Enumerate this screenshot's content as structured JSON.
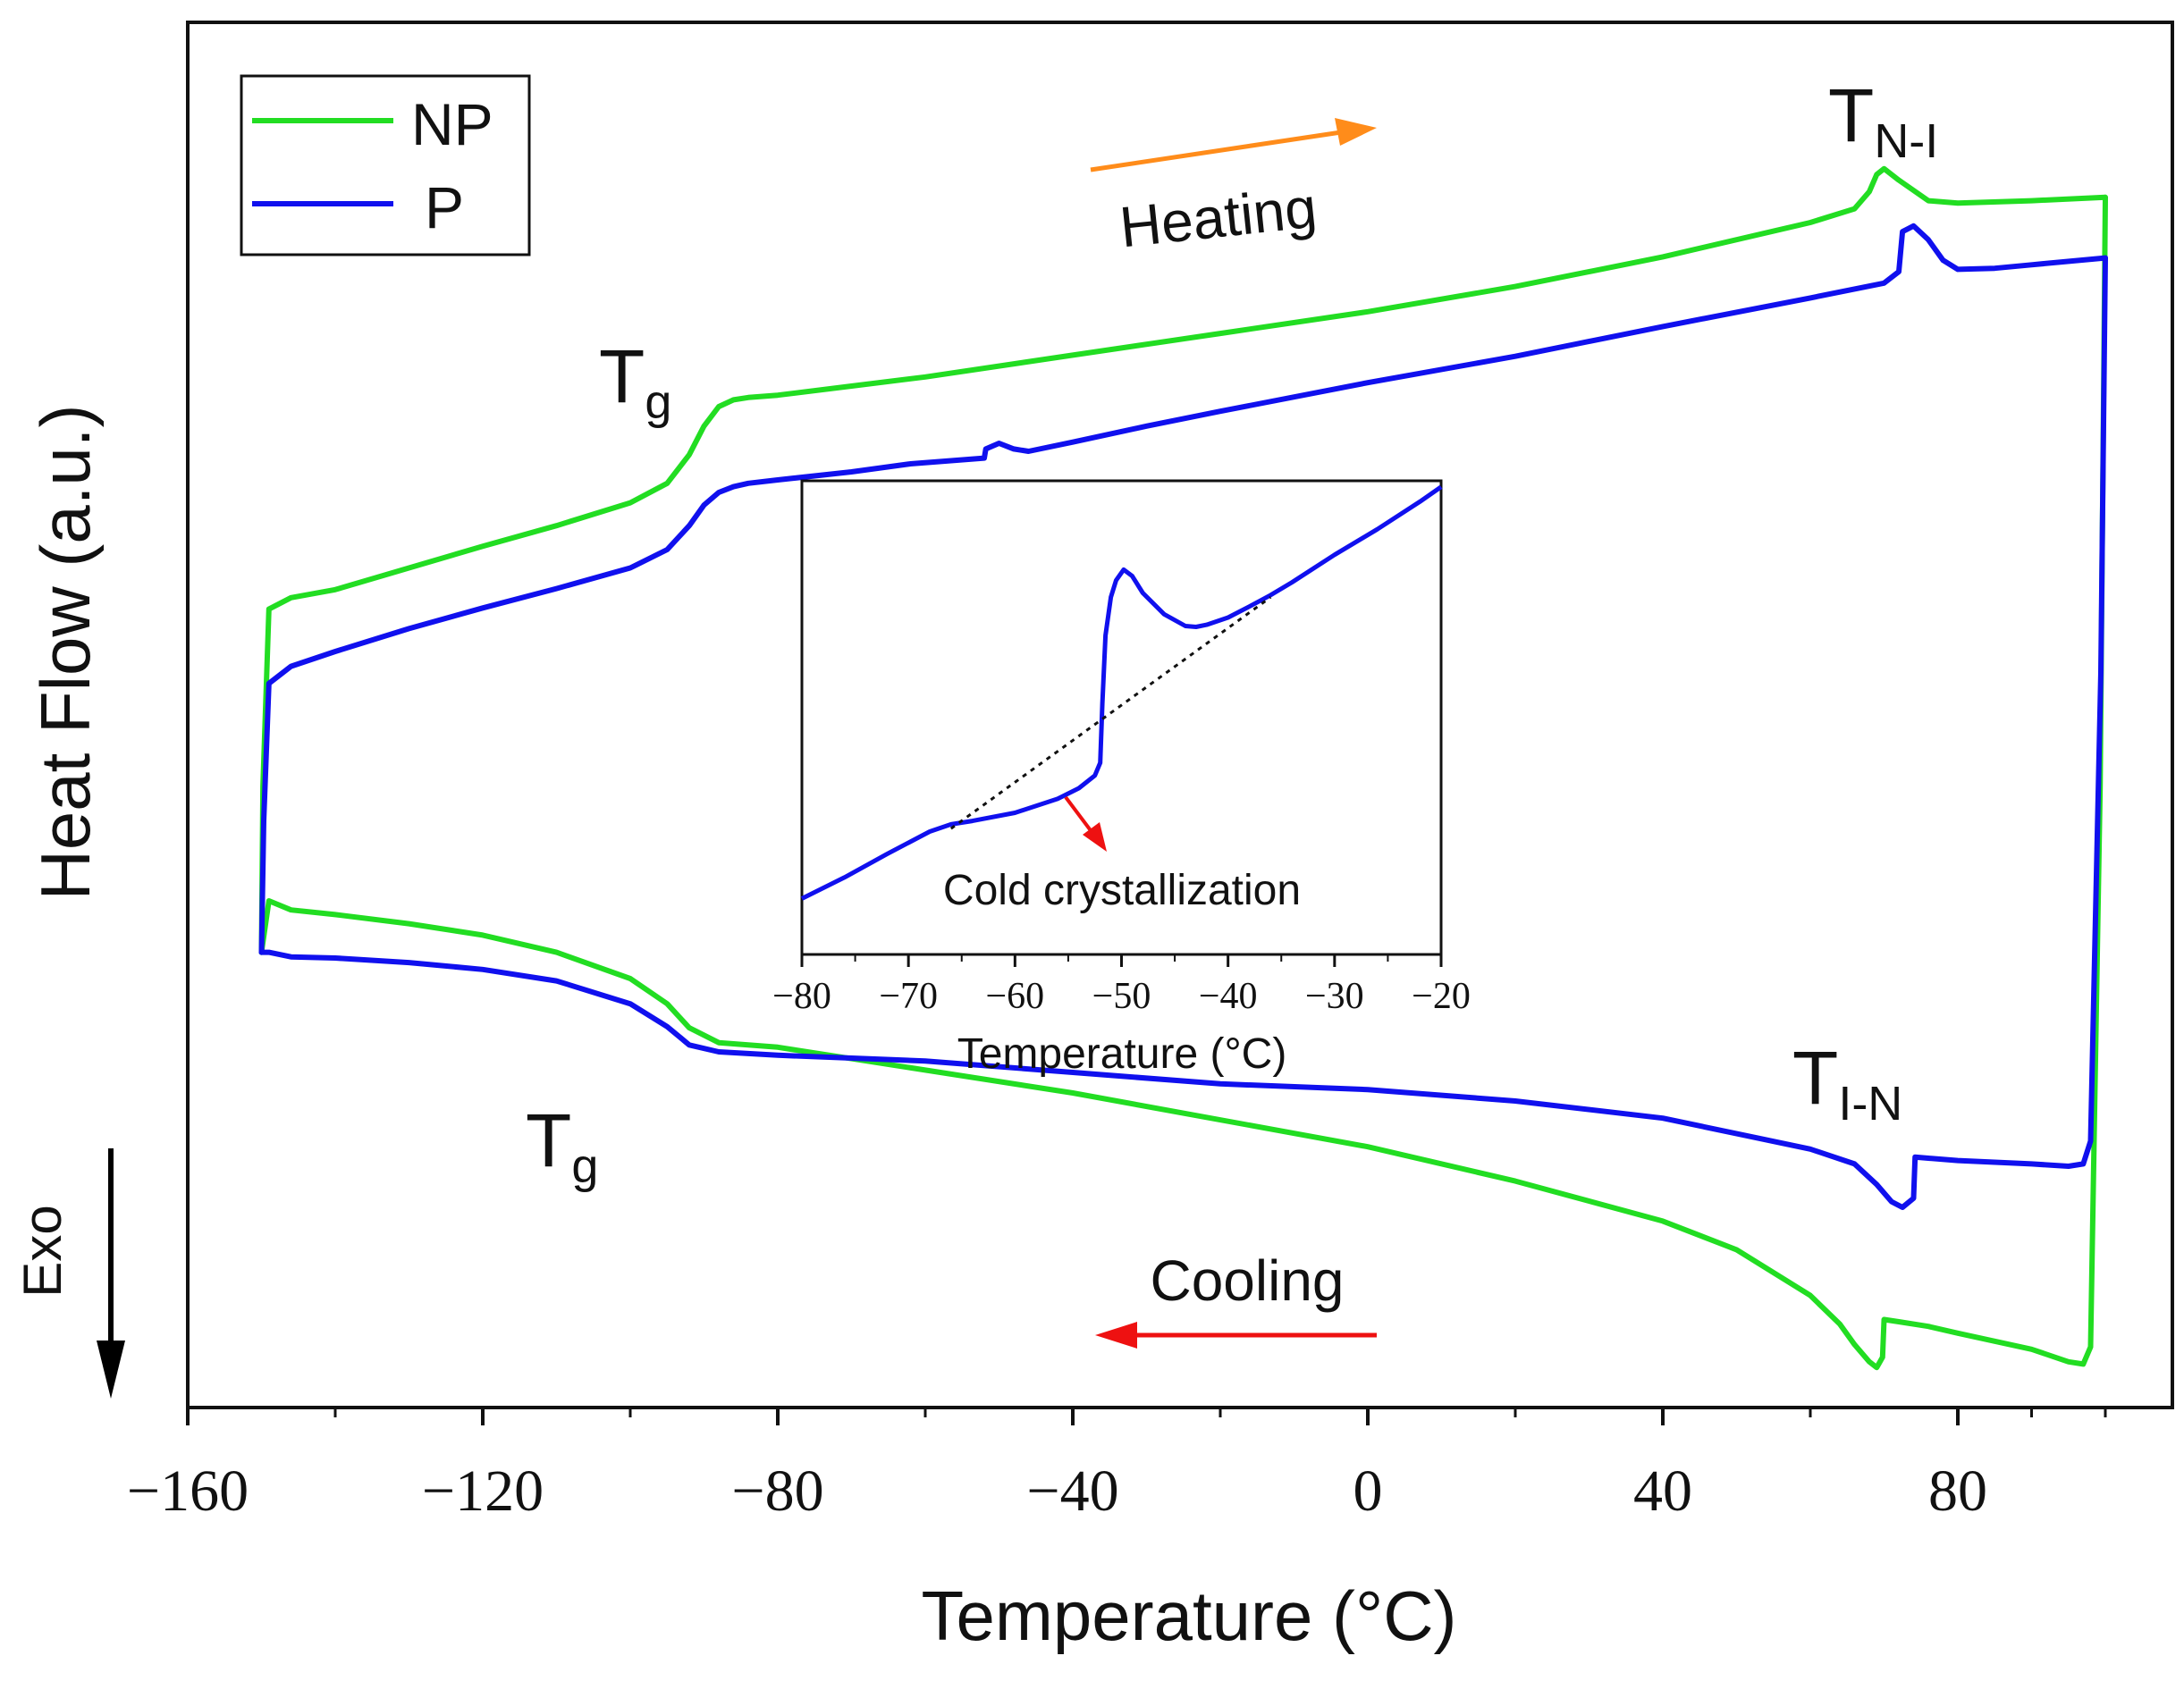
{
  "chart_data": [
    {
      "type": "line",
      "title": "",
      "xlabel": "Temperature (°C)",
      "ylabel": "Heat Flow (a.u.)",
      "xlim": [
        -160,
        110
      ],
      "ylim": [
        0,
        1
      ],
      "xticks": [
        -160,
        -120,
        -80,
        -40,
        0,
        40,
        80
      ],
      "xtick_labels": [
        "−160",
        "−120",
        "−80",
        "−40",
        "0",
        "40",
        "80"
      ],
      "yticks_shown": false,
      "legend": {
        "position": "top-left",
        "entries": [
          "NP",
          "P"
        ]
      },
      "colors": {
        "NP": "#22dd22",
        "P": "#1010ee",
        "heating_arrow": "#ff8c1a",
        "cooling_arrow": "#ee1111",
        "exo_arrow": "#000000"
      },
      "series": [
        {
          "name": "NP",
          "segment": "heating",
          "x": [
            -150,
            -149.8,
            -149,
            -146,
            -140,
            -130,
            -120,
            -110,
            -100,
            -95,
            -92,
            -90,
            -88,
            -86,
            -84,
            -80,
            -70,
            -60,
            -40,
            -20,
            0,
            20,
            40,
            60,
            66,
            68,
            69,
            70,
            72,
            76,
            80,
            90,
            100
          ],
          "y": [
            0.355,
            0.5,
            0.655,
            0.665,
            0.672,
            0.691,
            0.71,
            0.728,
            0.748,
            0.765,
            0.79,
            0.815,
            0.832,
            0.838,
            0.84,
            0.842,
            0.85,
            0.858,
            0.877,
            0.896,
            0.915,
            0.937,
            0.963,
            0.993,
            1.005,
            1.02,
            1.035,
            1.04,
            1.03,
            1.012,
            1.01,
            1.012,
            1.015
          ]
        },
        {
          "name": "NP",
          "segment": "cooling",
          "x": [
            100,
            99.3,
            98,
            97,
            95,
            90,
            80,
            76,
            72,
            70,
            69.8,
            69,
            68,
            66,
            64,
            60,
            50,
            40,
            20,
            0,
            -40,
            -60,
            -80,
            -88,
            -92,
            -95,
            -100,
            -110,
            -120,
            -130,
            -140,
            -146,
            -149,
            -150
          ],
          "y": [
            1.015,
            0.5,
            0.01,
            -0.005,
            -0.003,
            0.008,
            0.022,
            0.028,
            0.032,
            0.034,
            0.001,
            -0.008,
            -0.003,
            0.012,
            0.03,
            0.055,
            0.095,
            0.12,
            0.155,
            0.185,
            0.232,
            0.252,
            0.272,
            0.276,
            0.289,
            0.31,
            0.332,
            0.355,
            0.37,
            0.38,
            0.388,
            0.392,
            0.4,
            0.355
          ]
        },
        {
          "name": "P",
          "segment": "heating",
          "x": [
            -150,
            -149.7,
            -149,
            -146,
            -140,
            -130,
            -120,
            -110,
            -100,
            -95,
            -92,
            -90,
            -88,
            -86,
            -84,
            -80,
            -70,
            -62,
            -52,
            -51.8,
            -50,
            -48,
            -46,
            -40,
            -30,
            -20,
            0,
            20,
            40,
            60,
            70,
            72,
            72.5,
            74,
            76,
            78,
            80,
            85,
            90,
            100
          ],
          "y": [
            0.355,
            0.47,
            0.59,
            0.605,
            0.618,
            0.638,
            0.656,
            0.673,
            0.691,
            0.707,
            0.728,
            0.746,
            0.757,
            0.762,
            0.765,
            0.768,
            0.775,
            0.782,
            0.787,
            0.795,
            0.8,
            0.795,
            0.793,
            0.801,
            0.815,
            0.828,
            0.853,
            0.876,
            0.902,
            0.927,
            0.94,
            0.95,
            0.985,
            0.99,
            0.978,
            0.96,
            0.952,
            0.953,
            0.956,
            0.962
          ]
        },
        {
          "name": "P",
          "segment": "cooling",
          "x": [
            100,
            99.4,
            98,
            97,
            95,
            90,
            80,
            76,
            74.2,
            74,
            72.5,
            71,
            69,
            66,
            60,
            40,
            20,
            0,
            -20,
            -40,
            -60,
            -80,
            -88,
            -92,
            -95,
            -100,
            -110,
            -120,
            -130,
            -140,
            -146,
            -149,
            -150
          ],
          "y": [
            0.962,
            0.6,
            0.19,
            0.17,
            0.168,
            0.17,
            0.173,
            0.175,
            0.176,
            0.14,
            0.132,
            0.137,
            0.152,
            0.17,
            0.183,
            0.21,
            0.225,
            0.235,
            0.24,
            0.25,
            0.26,
            0.265,
            0.268,
            0.274,
            0.29,
            0.31,
            0.33,
            0.34,
            0.346,
            0.35,
            0.351,
            0.355,
            0.355
          ]
        }
      ],
      "annotations": [
        {
          "text": "T",
          "sub": "N-I",
          "x": 72,
          "y": 1.09
        },
        {
          "text": "T",
          "sub": "g",
          "x": -99,
          "y": 0.83
        },
        {
          "text": "T",
          "sub": "g",
          "x": -106,
          "y": 0.205
        },
        {
          "text": "T",
          "sub": "I-N",
          "x": 67,
          "y": 0.235
        },
        {
          "text": "Heating",
          "arrow": "right",
          "color": "#ff8c1a"
        },
        {
          "text": "Cooling",
          "arrow": "left",
          "color": "#ee1111"
        },
        {
          "text": "Exo",
          "arrow": "down",
          "color": "#000000"
        }
      ]
    },
    {
      "type": "line",
      "role": "inset",
      "title": "",
      "xlabel": "Temperature (°C)",
      "ylabel": "",
      "xlim": [
        -80,
        -20
      ],
      "ylim": [
        0,
        1
      ],
      "xticks": [
        -80,
        -70,
        -60,
        -50,
        -40,
        -30,
        -20
      ],
      "xtick_labels": [
        "−80",
        "−70",
        "−60",
        "−50",
        "−40",
        "−30",
        "−20"
      ],
      "yticks_shown": false,
      "series": [
        {
          "name": "P",
          "x": [
            -80,
            -76,
            -72,
            -68,
            -66,
            -64,
            -60,
            -56,
            -54,
            -52.5,
            -52,
            -51.8,
            -51.5,
            -51,
            -50.5,
            -49.8,
            -49,
            -48,
            -46,
            -44,
            -43,
            -42,
            -40,
            -38,
            -36,
            -34,
            -30,
            -26,
            -22,
            -20
          ],
          "y": [
            0.02,
            0.07,
            0.125,
            0.178,
            0.195,
            0.203,
            0.222,
            0.255,
            0.28,
            0.31,
            0.34,
            0.48,
            0.64,
            0.73,
            0.77,
            0.795,
            0.78,
            0.74,
            0.69,
            0.662,
            0.66,
            0.665,
            0.682,
            0.708,
            0.735,
            0.765,
            0.83,
            0.89,
            0.955,
            0.99
          ]
        },
        {
          "name": "baseline",
          "style": "dotted",
          "x": [
            -66,
            -36
          ],
          "y": [
            0.185,
            0.73
          ]
        }
      ],
      "annotations": [
        {
          "text": "Cold crystallization",
          "arrow": "down-right",
          "color": "#ee1111",
          "x": -51,
          "y": 0.055
        }
      ]
    }
  ]
}
